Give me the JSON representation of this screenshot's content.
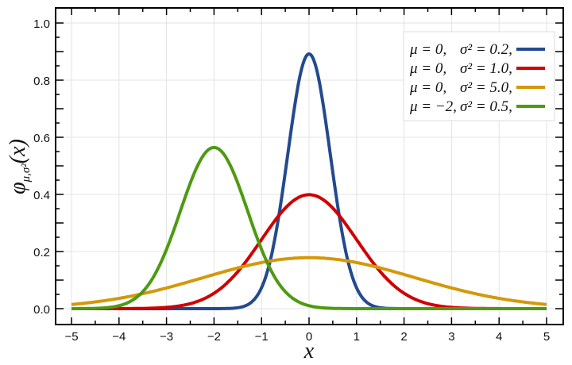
{
  "chart_data": {
    "type": "line",
    "title": "",
    "xlabel": "x",
    "ylabel": "φμ,σ²(x)",
    "ylabel_main": "φ",
    "ylabel_sub": "μ,σ²",
    "ylabel_arg": "(x)",
    "xlim": [
      -5.3,
      5.3
    ],
    "ylim": [
      -0.05,
      1.05
    ],
    "xticks": [
      -5,
      -4,
      -3,
      -2,
      -1,
      0,
      1,
      2,
      3,
      4,
      5
    ],
    "xtick_labels": [
      "−5",
      "−4",
      "−3",
      "−2",
      "−1",
      "0",
      "1",
      "2",
      "3",
      "4",
      "5"
    ],
    "yticks": [
      0,
      0.2,
      0.4,
      0.6,
      0.8,
      1.0
    ],
    "ytick_labels": [
      "0.0",
      "0.2",
      "0.4",
      "0.6",
      "0.8",
      "1.0"
    ],
    "grid": true,
    "legend_placement": "top-right",
    "series": [
      {
        "name": "μ=0, σ²=0.2,",
        "mu_label": "μ = 0,",
        "var_label": "σ² = 0.2,",
        "mu": 0,
        "variance": 0.2,
        "color": "#234a8f"
      },
      {
        "name": "μ=0, σ²=1.0,",
        "mu_label": "μ = 0,",
        "var_label": "σ² = 1.0,",
        "mu": 0,
        "variance": 1.0,
        "color": "#d10000"
      },
      {
        "name": "μ=0, σ²=5.0,",
        "mu_label": "μ = 0,",
        "var_label": "σ² = 5.0,",
        "mu": 0,
        "variance": 5.0,
        "color": "#d4980a"
      },
      {
        "name": "μ=−2, σ²=0.5,",
        "mu_label": "μ = −2,",
        "var_label": "σ² = 0.5,",
        "mu": -2,
        "variance": 0.5,
        "color": "#4e9a12"
      }
    ]
  }
}
